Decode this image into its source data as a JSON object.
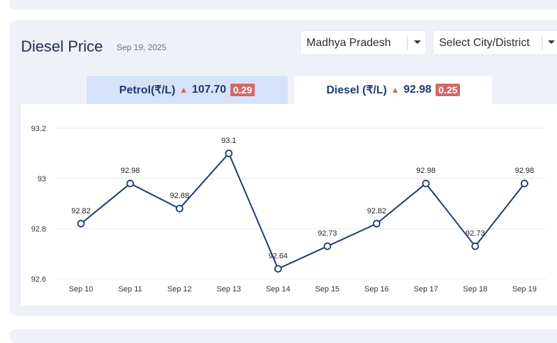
{
  "page": {
    "title": "Diesel Price",
    "date": "Sep 19, 2025"
  },
  "filters": {
    "state": "Madhya Pradesh",
    "city": "Select City/District"
  },
  "tabs": {
    "petrol": {
      "label": "Petrol(₹/L)",
      "price": "107.70",
      "change": "0.29"
    },
    "diesel": {
      "label": "Diesel (₹/L)",
      "price": "92.98",
      "change": "0.25"
    }
  },
  "colors": {
    "line": "#1f3a6e",
    "change_badge": "#d16a6a",
    "active_tab_bg": "#ffffff",
    "inactive_tab_bg": "#d6e2f8"
  },
  "chart_data": {
    "type": "line",
    "categories": [
      "Sep 10",
      "Sep 11",
      "Sep 12",
      "Sep 13",
      "Sep 14",
      "Sep 15",
      "Sep 16",
      "Sep 17",
      "Sep 18",
      "Sep 19"
    ],
    "values": [
      92.82,
      92.98,
      92.88,
      93.1,
      92.64,
      92.73,
      92.82,
      92.98,
      92.73,
      92.98
    ],
    "data_labels": [
      "92.82",
      "92.98",
      "92.88",
      "93.1",
      "92.64",
      "92.73",
      "92.82",
      "92.98",
      "92.73",
      "92.98"
    ],
    "ylim": [
      92.6,
      93.2
    ],
    "yticks": [
      92.6,
      92.8,
      93,
      93.2
    ],
    "ytick_labels": [
      "92.6",
      "92.8",
      "93",
      "93.2"
    ],
    "grid": true,
    "xlabel": "",
    "ylabel": ""
  }
}
